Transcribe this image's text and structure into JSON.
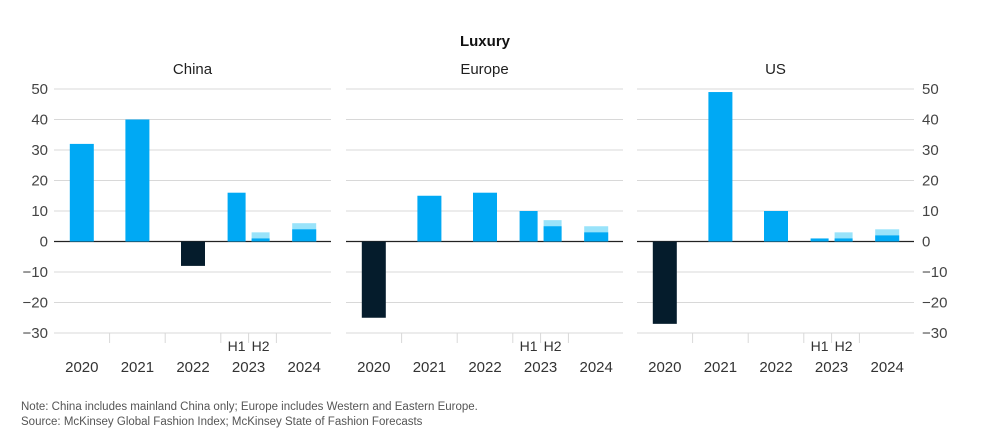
{
  "title": "Luxury",
  "notes": {
    "note": "Note: China includes mainland China only; Europe includes Western and Eastern Europe.",
    "source": "Source: McKinsey Global Fashion Index; McKinsey State of Fashion Forecasts"
  },
  "colors": {
    "positive": "#00a9f4",
    "negative": "#051c2c",
    "forecast": "#99e3fa",
    "gridline": "#d8d8d8",
    "axis": "#222222"
  },
  "chart_data": [
    {
      "type": "bar",
      "title": "China",
      "ylim": [
        -30,
        50
      ],
      "yticks": [
        50,
        40,
        30,
        20,
        10,
        0,
        -10,
        -20,
        -30
      ],
      "categories": [
        "2020",
        "2021",
        "2022",
        "2023",
        "2024"
      ],
      "sublabels_2023": [
        "H1",
        "H2"
      ],
      "values": {
        "2020": [
          32
        ],
        "2021": [
          40
        ],
        "2022": [
          -8
        ],
        "2023_H1": [
          16
        ],
        "2023_H2": [
          1,
          3
        ],
        "2024": [
          4,
          6
        ]
      }
    },
    {
      "type": "bar",
      "title": "Europe",
      "ylim": [
        -30,
        50
      ],
      "categories": [
        "2020",
        "2021",
        "2022",
        "2023",
        "2024"
      ],
      "sublabels_2023": [
        "H1",
        "H2"
      ],
      "values": {
        "2020": [
          -25
        ],
        "2021": [
          15
        ],
        "2022": [
          16
        ],
        "2023_H1": [
          10
        ],
        "2023_H2": [
          5,
          7
        ],
        "2024": [
          3,
          5
        ]
      }
    },
    {
      "type": "bar",
      "title": "US",
      "ylim": [
        -30,
        50
      ],
      "yticks": [
        50,
        40,
        30,
        20,
        10,
        0,
        -10,
        -20,
        -30
      ],
      "categories": [
        "2020",
        "2021",
        "2022",
        "2023",
        "2024"
      ],
      "sublabels_2023": [
        "H1",
        "H2"
      ],
      "values": {
        "2020": [
          -27
        ],
        "2021": [
          49
        ],
        "2022": [
          10
        ],
        "2023_H1": [
          1
        ],
        "2023_H2": [
          1,
          3
        ],
        "2024": [
          2,
          4
        ]
      }
    }
  ]
}
